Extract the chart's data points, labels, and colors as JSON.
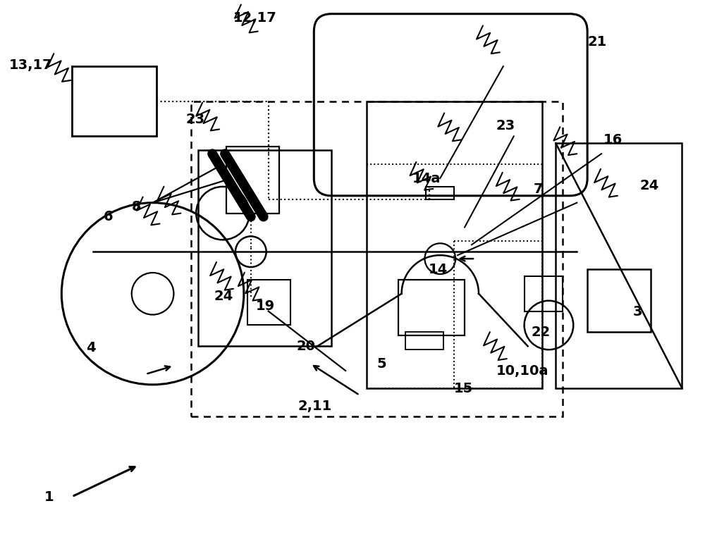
{
  "bg_color": "#ffffff",
  "line_color": "#000000",
  "fig_width": 10.0,
  "fig_height": 7.72
}
